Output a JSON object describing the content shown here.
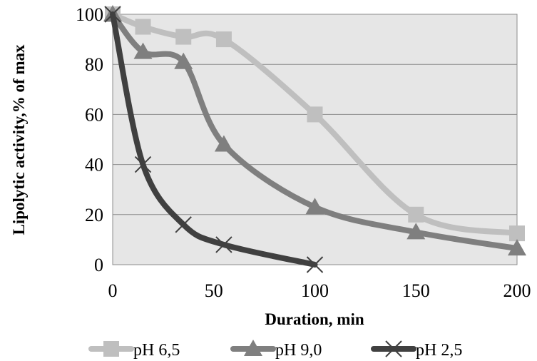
{
  "chart_data": {
    "type": "line",
    "title": "",
    "xlabel": "Duration, min",
    "ylabel": "Lipolytic activity,% of max",
    "xlim": [
      0,
      200
    ],
    "ylim": [
      0,
      100
    ],
    "x_ticks": [
      "0",
      "50",
      "100",
      "150",
      "200"
    ],
    "y_ticks": [
      "0",
      "20",
      "40",
      "60",
      "80",
      "100"
    ],
    "grid": true,
    "smooth": true,
    "legend_position": "bottom",
    "series": [
      {
        "name": "pH 6,5",
        "color": "#bfbfbf",
        "marker": "square",
        "x": [
          0,
          15,
          35,
          55,
          100,
          150,
          200
        ],
        "y": [
          100,
          95,
          91,
          90,
          60,
          20,
          12.5
        ]
      },
      {
        "name": "pH 9,0",
        "color": "#7f7f7f",
        "marker": "triangle",
        "x": [
          0,
          15,
          35,
          55,
          100,
          150,
          200
        ],
        "y": [
          100,
          85,
          81,
          48,
          23,
          13,
          6.5
        ]
      },
      {
        "name": "pH 2,5",
        "color": "#404040",
        "marker": "x",
        "x": [
          0,
          15,
          35,
          55,
          100
        ],
        "y": [
          100,
          40,
          16,
          8,
          0
        ]
      }
    ]
  }
}
